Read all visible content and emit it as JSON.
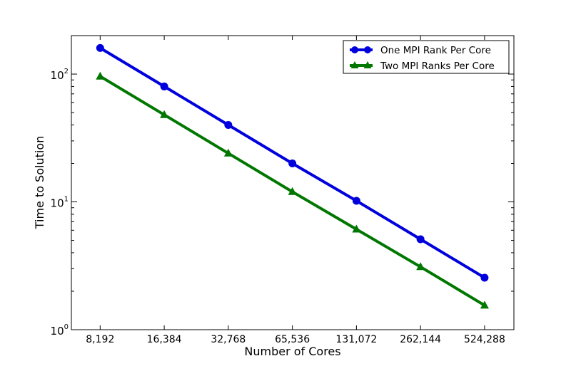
{
  "chart_data": {
    "type": "line",
    "xscale": "log2",
    "yscale": "log",
    "categories": [
      "8,192",
      "16,384",
      "32,768",
      "65,536",
      "131,072",
      "262,144",
      "524,288"
    ],
    "x": [
      8192,
      16384,
      32768,
      65536,
      131072,
      262144,
      524288
    ],
    "xlim": [
      6000,
      720000
    ],
    "ylim": [
      1,
      200
    ],
    "ytick_labels": [
      {
        "value": 1,
        "base": "10",
        "exp": "0"
      },
      {
        "value": 10,
        "base": "10",
        "exp": "1"
      },
      {
        "value": 100,
        "base": "10",
        "exp": "2"
      }
    ],
    "xlabel": "Number of Cores",
    "ylabel": "Time to Solution",
    "grid": false,
    "legend_position": "top-right",
    "series": [
      {
        "name": "One MPI Rank Per Core",
        "color": "#0000dd",
        "marker": "circle",
        "values": [
          160,
          80,
          40,
          20,
          10.2,
          5.1,
          2.55
        ]
      },
      {
        "name": "Two MPI Ranks Per Core",
        "color": "#007700",
        "marker": "triangle",
        "values": [
          96,
          48,
          24,
          12,
          6.1,
          3.1,
          1.55
        ]
      }
    ]
  }
}
